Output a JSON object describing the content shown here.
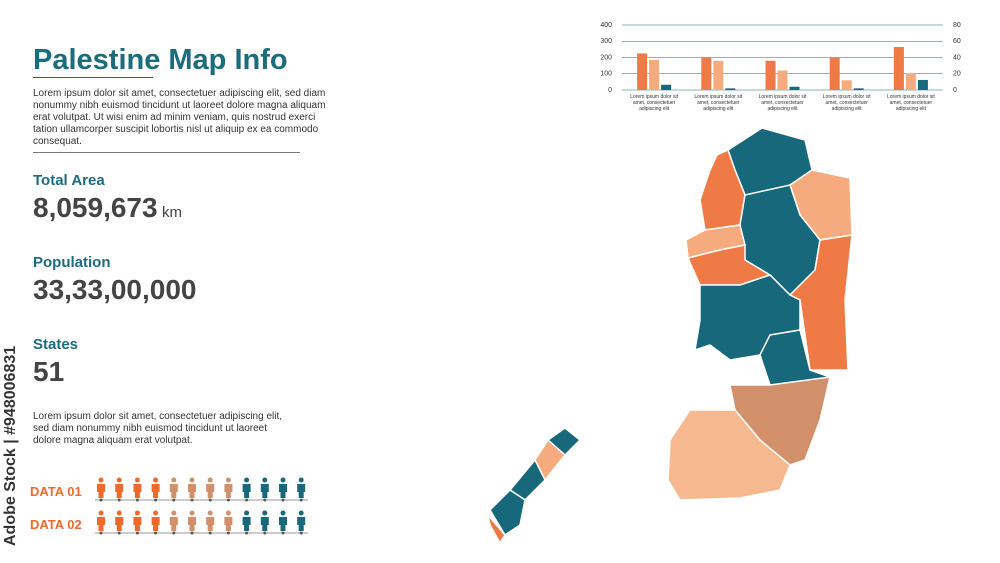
{
  "header": {
    "title": "Palestine Map Info",
    "text": "Lorem ipsum dolor sit amet, consectetuer adipiscing elit, sed diam nonummy nibh euismod tincidunt ut laoreet dolore magna aliquam erat volutpat. Ut wisi enim ad minim veniam, quis nostrud exerci tation ullamcorper suscipit lobortis nisl ut aliquip ex ea commodo consequat."
  },
  "stats": [
    {
      "label": "Total Area",
      "value": "8,059,673",
      "unit": "km"
    },
    {
      "label": "Population",
      "value": "33,33,00,000"
    },
    {
      "label": "States",
      "value": "51"
    }
  ],
  "note": "Lorem ipsum dolor sit amet, consectetuer adipiscing elit, sed diam nonummy nibh euismod tincidunt ut laoreet dolore magna aliquam erat volutpat.",
  "data_rows": [
    "DATA 01",
    "DATA 02"
  ],
  "watermark": "Adobe Stock | #948006831",
  "chart_data": {
    "type": "bar",
    "categories": [
      "Lorem ipsum dolor sit amet, consectetuer adipiscing elit",
      "Lorem ipsum dolor sit amet, consectetuer adipiscing elit",
      "Lorem ipsum dolor sit amet, consectetuer adipiscing elit",
      "Lorem ipsum dolor sit amet, consectetuer adipiscing elit",
      "Lorem ipsum dolor sit amet, consectetuer adipiscing elit"
    ],
    "series": [
      {
        "color": "#f07a45",
        "values": [
          225,
          200,
          180,
          200,
          265
        ]
      },
      {
        "color": "#f6ab7e",
        "values": [
          185,
          180,
          120,
          60,
          100
        ]
      },
      {
        "color": "#16687a",
        "values": [
          32,
          10,
          20,
          10,
          62
        ]
      }
    ],
    "ylim": [
      0,
      400
    ],
    "yticks": [
      0,
      100,
      200,
      300,
      400
    ],
    "y2lim": [
      0,
      80
    ],
    "y2ticks": [
      0,
      20,
      40,
      60,
      80
    ],
    "grid": true
  }
}
